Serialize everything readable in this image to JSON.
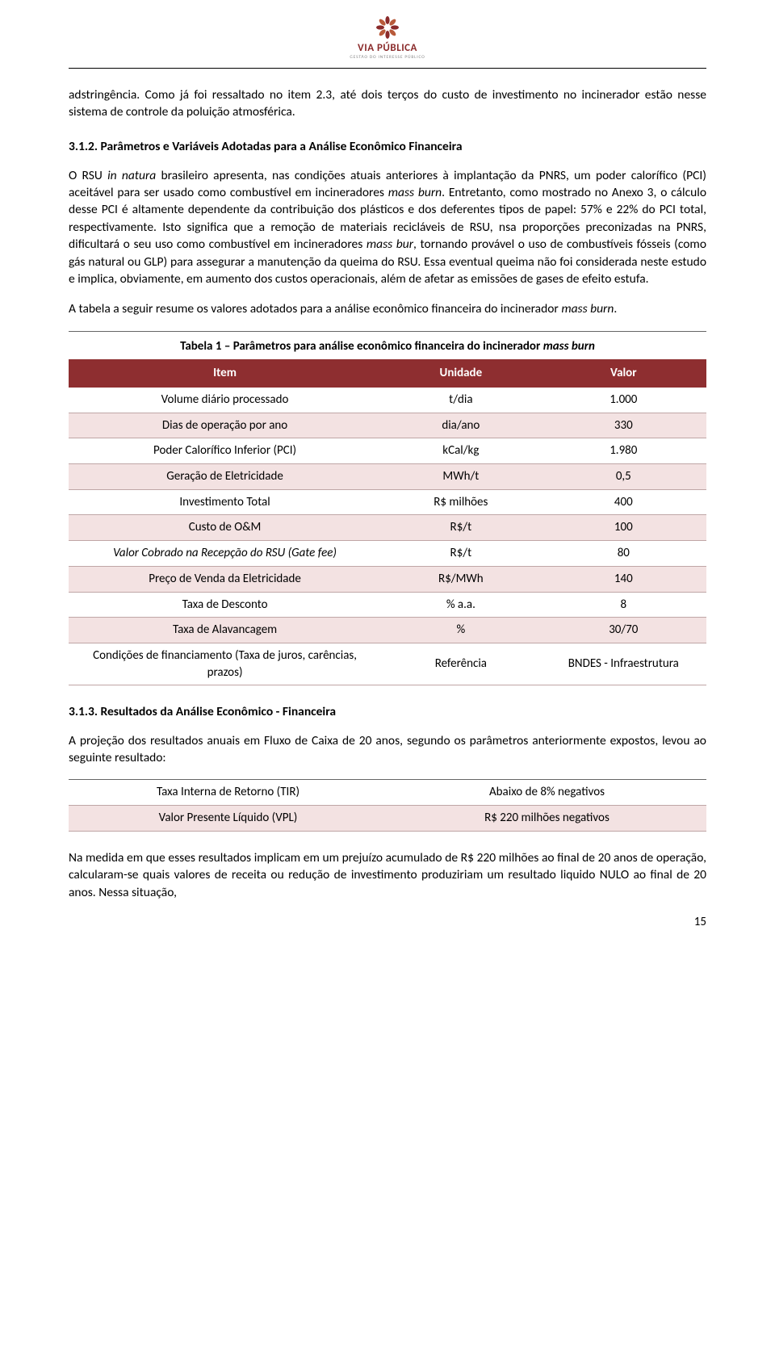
{
  "brand": {
    "name": "VIA PÚBLICA",
    "tagline": "GESTÃO DO INTERESSE PÚBLICO",
    "color": "#8a2a2a"
  },
  "body": {
    "p1": "adstringência. Como já foi ressaltado no item 2.3, até dois terços do custo de investimento no incinerador estão nesse sistema de controle da poluição atmosférica.",
    "h1": "3.1.2. Parâmetros e Variáveis Adotadas para a Análise Econômico Financeira",
    "p2a": "O RSU ",
    "p2b": "in natura",
    "p2c": " brasileiro apresenta, nas condições atuais anteriores à implantação da PNRS, um poder calorífico (PCI) aceitável para ser usado como combustível em incineradores ",
    "p2d": "mass burn",
    "p2e": ". Entretanto, como mostrado no Anexo 3, o cálculo desse PCI é altamente dependente da contribuição dos plásticos e dos deferentes tipos de papel: 57% e 22% do PCI total, respectivamente. Isto significa que a remoção de materiais recicláveis de RSU, nsa proporções preconizadas na PNRS, dificultará o seu uso como combustível em incineradores ",
    "p2f": "mass bur",
    "p2g": ", tornando provável o uso de combustíveis fósseis (como gás natural ou GLP) para assegurar a manutenção da queima do RSU. Essa eventual queima não foi considerada neste estudo e implica, obviamente, em aumento dos custos operacionais, além de afetar as emissões de gases de efeito estufa.",
    "p3a": "A tabela a seguir resume os valores adotados para a análise econômico financeira do incinerador ",
    "p3b": "mass burn",
    "p3c": ".",
    "h2": "3.1.3. Resultados da Análise Econômico - Financeira",
    "p4": "A projeção dos resultados anuais em Fluxo de Caixa de 20 anos, segundo os parâmetros anteriormente expostos, levou ao seguinte resultado:",
    "p5": "Na medida em que esses resultados implicam em um prejuízo acumulado de R$ 220 milhões ao final de 20 anos de operação, calcularam-se quais valores de receita ou redução de investimento produziriam um resultado liquido NULO ao final de 20 anos. Nessa situação,"
  },
  "table1": {
    "caption_a": "Tabela 1 – Parâmetros para análise econômico financeira do incinerador ",
    "caption_b": "mass burn",
    "headers": {
      "item": "Item",
      "unit": "Unidade",
      "value": "Valor"
    },
    "header_bg": "#8e2e30",
    "alt_bg": "#f3e2e2",
    "rows": [
      {
        "item": "Volume diário processado",
        "unit": "t/dia",
        "value": "1.000",
        "italic": false
      },
      {
        "item": "Dias de operação por ano",
        "unit": "dia/ano",
        "value": "330",
        "italic": false
      },
      {
        "item": "Poder Calorífico Inferior (PCI)",
        "unit": "kCal/kg",
        "value": "1.980",
        "italic": false
      },
      {
        "item": "Geração de Eletricidade",
        "unit": "MWh/t",
        "value": "0,5",
        "italic": false
      },
      {
        "item": "Investimento Total",
        "unit": "R$ milhões",
        "value": "400",
        "italic": false
      },
      {
        "item": "Custo de O&M",
        "unit": "R$/t",
        "value": "100",
        "italic": false
      },
      {
        "item": "Valor Cobrado na Recepção do RSU (Gate fee)",
        "unit": "R$/t",
        "value": "80",
        "italic": true
      },
      {
        "item": "Preço de Venda da Eletricidade",
        "unit": "R$/MWh",
        "value": "140",
        "italic": false
      },
      {
        "item": "Taxa de Desconto",
        "unit": "% a.a.",
        "value": "8",
        "italic": false
      },
      {
        "item": "Taxa de Alavancagem",
        "unit": "%",
        "value": "30/70",
        "italic": false
      },
      {
        "item": "Condições de financiamento (Taxa de juros, carências, prazos)",
        "unit": "Referência",
        "value": "BNDES - Infraestrutura",
        "italic": false
      }
    ]
  },
  "table2": {
    "rows": [
      {
        "label": "Taxa Interna de Retorno (TIR)",
        "value": "Abaixo de 8% negativos"
      },
      {
        "label": "Valor Presente Líquido (VPL)",
        "value": "R$ 220 milhões negativos"
      }
    ]
  },
  "page_number": "15"
}
